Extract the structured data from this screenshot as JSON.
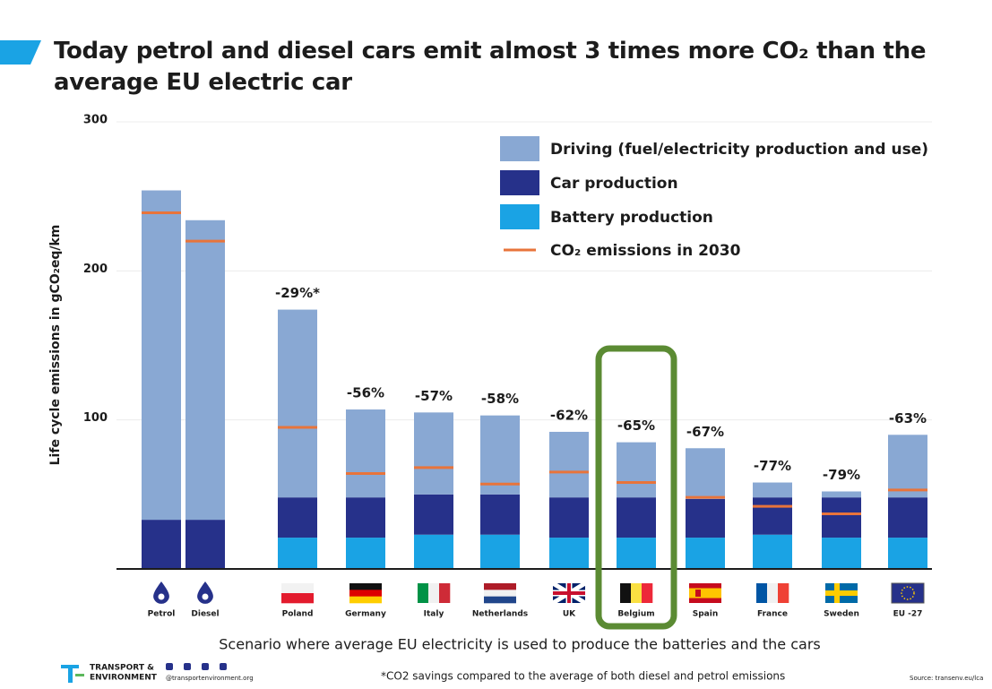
{
  "chart_data": {
    "type": "stacked-bar",
    "title": "Today petrol and diesel cars emit almost 3 times more CO₂ than the average EU electric car",
    "y_label": "Life cycle emissions in gCO₂eq/km",
    "x_label": "Scenario where average EU electricity is used to produce the batteries and the cars",
    "footnote": "*CO2 savings compared to the average of both diesel and petrol emissions",
    "source": "Source: transenv.eu/lca",
    "logo": [
      "TRANSPORT &",
      "ENVIRONMENT"
    ],
    "handle": "@transportenvironment.org",
    "categories": [
      "Petrol",
      "Diesel",
      "Poland",
      "Germany",
      "Italy",
      "Netherlands",
      "UK",
      "Belgium",
      "Spain",
      "France",
      "Sweden",
      "EU -27"
    ],
    "series": [
      {
        "name": "Driving (fuel/electricity production and use)",
        "color": "#89a8d3",
        "values": [
          221,
          201,
          126,
          59,
          55,
          53,
          44,
          37,
          34,
          10,
          4,
          42
        ]
      },
      {
        "name": "Car production",
        "color": "#26318a",
        "values": [
          33,
          33,
          27,
          27,
          27,
          27,
          27,
          27,
          26,
          25,
          27,
          27
        ]
      },
      {
        "name": "Battery production",
        "color": "#1aa3e4",
        "values": [
          0,
          0,
          21,
          21,
          23,
          23,
          21,
          21,
          21,
          23,
          21,
          21
        ]
      }
    ],
    "co2_2030": {
      "name": "CO₂ emissions in 2030",
      "color": "#e8743b",
      "values": [
        239,
        220,
        95,
        64,
        68,
        57,
        65,
        58,
        48,
        42,
        37,
        53
      ]
    },
    "change_labels": [
      null,
      null,
      "-29%*",
      "-56%",
      "-57%",
      "-58%",
      "-62%",
      "-65%",
      "-67%",
      "-77%",
      "-79%",
      "-63%"
    ],
    "highlight": "Belgium",
    "ylim": [
      0,
      300
    ],
    "yticks": [
      100,
      200,
      300
    ],
    "grid": true
  }
}
